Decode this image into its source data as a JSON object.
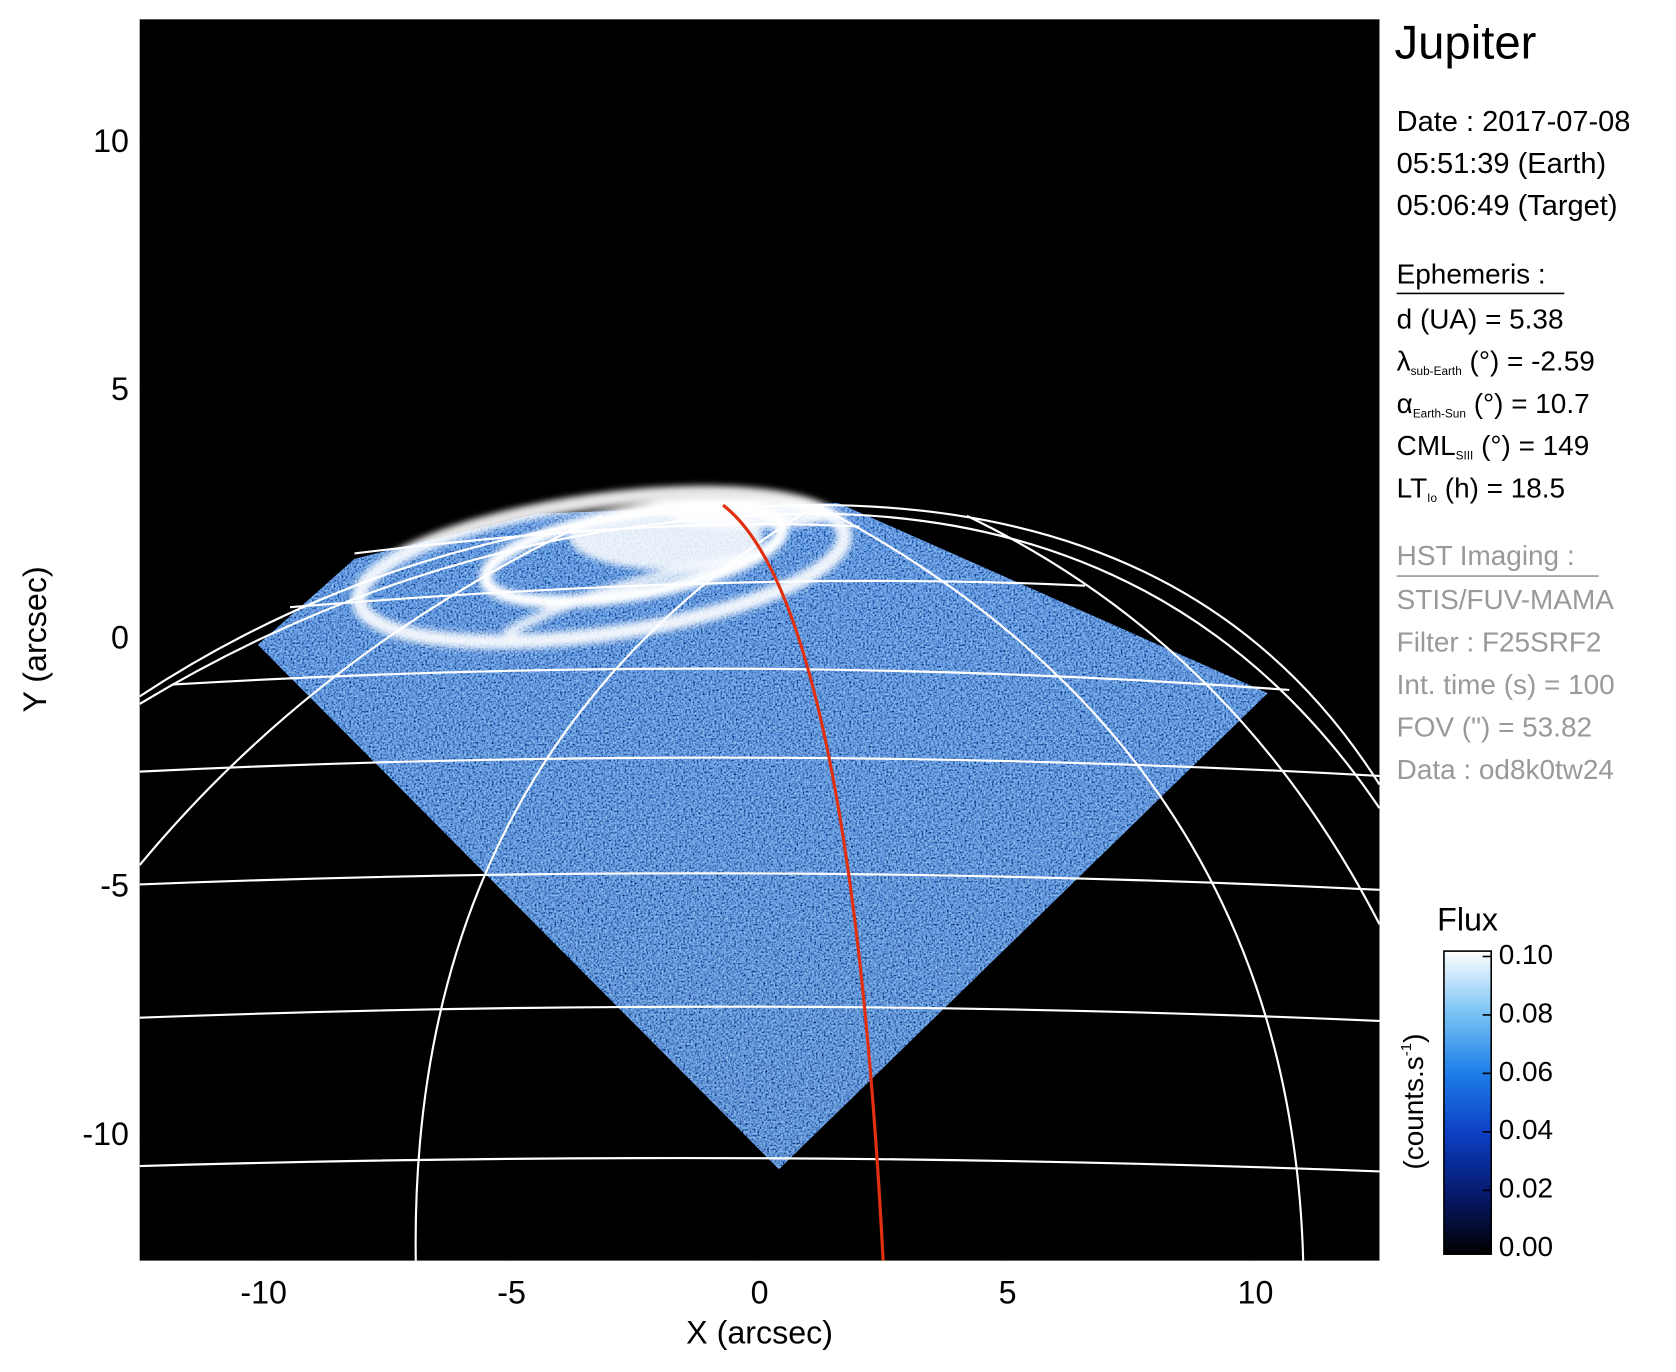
{
  "chart_data": {
    "type": "image",
    "title": "Jupiter",
    "xlabel": "X (arcsec)",
    "ylabel": "Y (arcsec)",
    "xlim": [
      -12.5,
      12.5
    ],
    "ylim": [
      -12.5,
      12.5
    ],
    "xticks": [
      -10,
      -5,
      0,
      5,
      10
    ],
    "yticks": [
      -10,
      -5,
      0,
      5,
      10
    ],
    "colorbar": {
      "title": "Flux",
      "label": [
        "(counts.s",
        "-1",
        ")"
      ],
      "lim": [
        0,
        0.1
      ],
      "ticks": [
        {
          "value": 0,
          "label": "0.00"
        },
        {
          "value": 0.02,
          "label": "0.02"
        },
        {
          "value": 0.04,
          "label": "0.04"
        },
        {
          "value": 0.06,
          "label": "0.06"
        },
        {
          "value": 0.08,
          "label": "0.08"
        },
        {
          "value": 0.1,
          "label": "0.10"
        }
      ],
      "colors": [
        "#000000",
        "#061a6e",
        "#0d3fc4",
        "#1e7fe8",
        "#7cc4f5",
        "#ffffff"
      ]
    },
    "info": {
      "date": [
        "Date : 2017-07-08",
        "05:51:39 (Earth)",
        "05:06:49 (Target)"
      ],
      "ephemeris": {
        "title": "Ephemeris :",
        "lines": [
          {
            "main": "d (UA)    = 5.38"
          },
          {
            "main": "λ",
            "sub": "sub-Earth",
            "rest": " (°) = -2.59"
          },
          {
            "main": "α",
            "sub": "Earth-Sun",
            "rest": " (°) = 10.7"
          },
          {
            "main": "CML",
            "sub": "SIII",
            "rest": " (°) = 149"
          },
          {
            "main": "LT",
            "sub": "Io",
            "rest": " (h) = 18.5"
          }
        ]
      },
      "imaging": {
        "title": "HST Imaging :",
        "lines": [
          "STIS/FUV-MAMA",
          "Filter : F25SRF2",
          "Int. time (s) = 100",
          "FOV (\") = 53.82",
          "Data : od8k0tw24"
        ]
      }
    }
  }
}
